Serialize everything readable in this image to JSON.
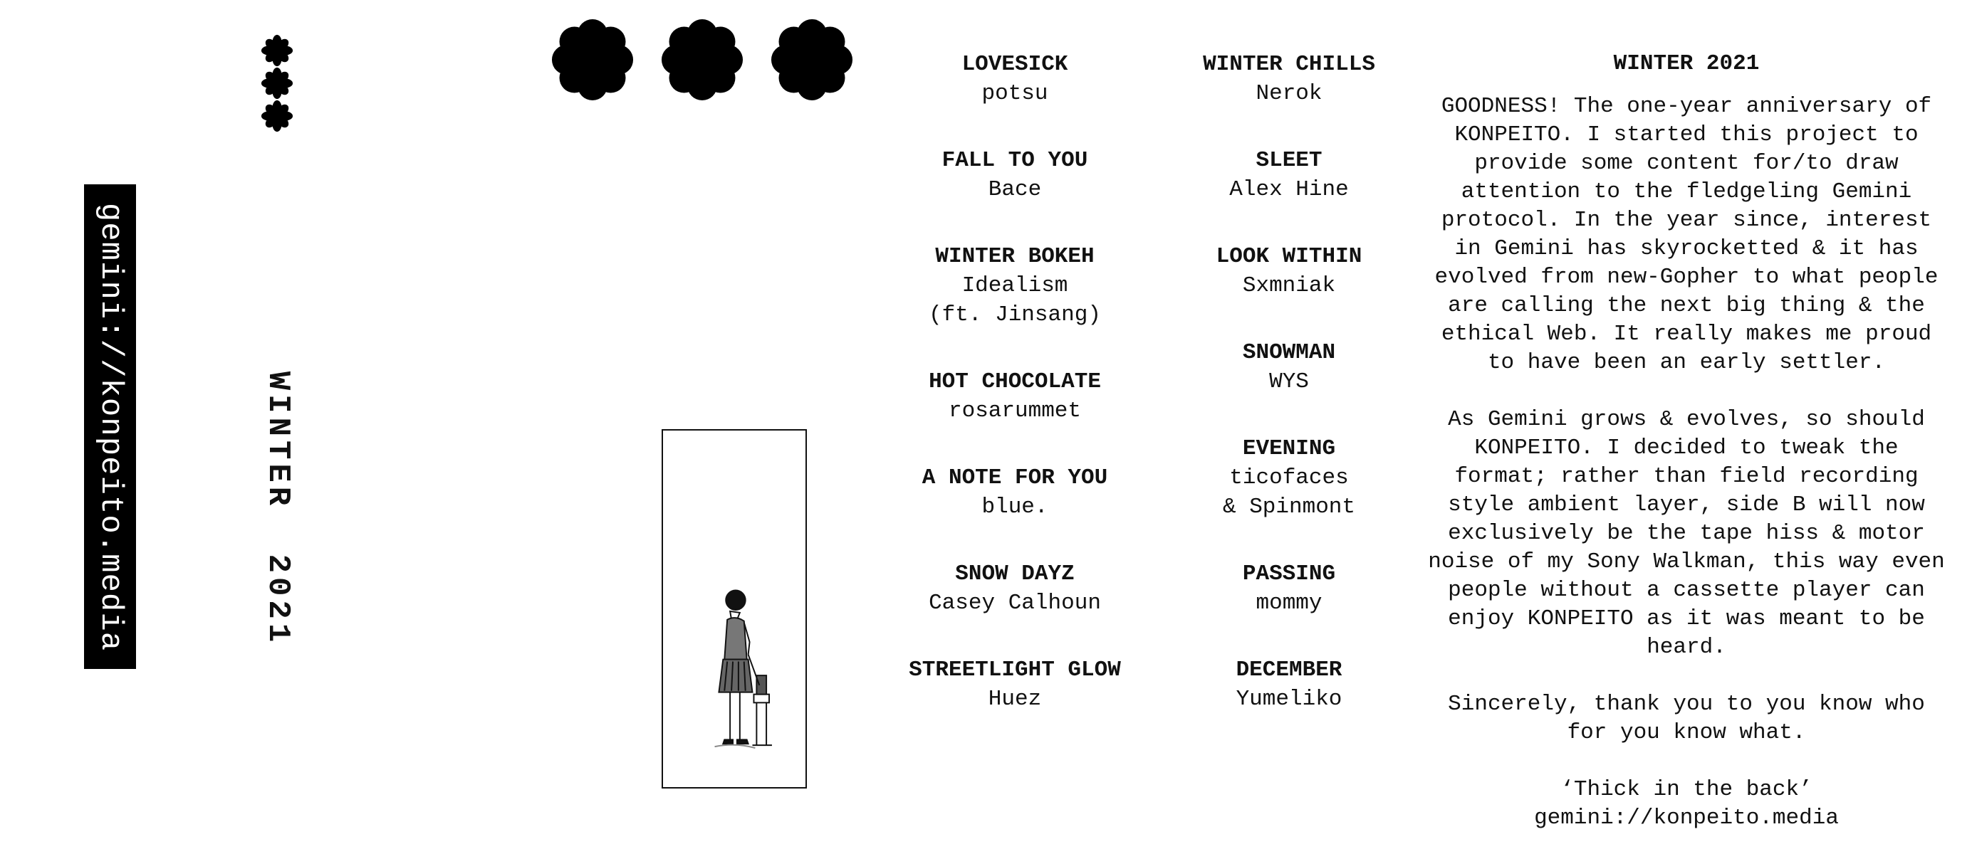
{
  "spine": {
    "url": "gemini://konpeito.media",
    "title_word": "WINTER",
    "title_year": "2021"
  },
  "colors": {
    "ink": "#111111",
    "background": "#ffffff",
    "strip": "#000000"
  },
  "icons": {
    "small": "flower-icon",
    "big": "flower-icon"
  },
  "tracks_side_a": [
    {
      "title": "LOVESICK",
      "artist": "potsu"
    },
    {
      "title": "FALL TO YOU",
      "artist": "Bace"
    },
    {
      "title": "WINTER BOKEH",
      "artist": "Idealism\n(ft. Jinsang)"
    },
    {
      "title": "HOT CHOCOLATE",
      "artist": "rosarummet"
    },
    {
      "title": "A NOTE FOR YOU",
      "artist": "blue."
    },
    {
      "title": "SNOW DAYZ",
      "artist": "Casey Calhoun"
    },
    {
      "title": "STREETLIGHT GLOW",
      "artist": "Huez"
    }
  ],
  "tracks_side_b": [
    {
      "title": "WINTER CHILLS",
      "artist": "Nerok"
    },
    {
      "title": "SLEET",
      "artist": "Alex Hine"
    },
    {
      "title": "LOOK WITHIN",
      "artist": "Sxmniak"
    },
    {
      "title": "SNOWMAN",
      "artist": "WYS"
    },
    {
      "title": "EVENING",
      "artist": "ticofaces\n& Spinmont"
    },
    {
      "title": "PASSING",
      "artist": "mommy"
    },
    {
      "title": "DECEMBER",
      "artist": "Yumeliko"
    }
  ],
  "notes": {
    "heading": "WINTER 2021",
    "paragraph1": "GOODNESS! The one-year anniversary of KONPEITO. I started this project to provide some content for/to draw attention to the fledgeling Gemini protocol. In the year since, interest in Gemini has skyrocketted & it has evolved from new-Gopher to what people are calling the next big thing & the ethical Web. It really makes me proud to have been an early settler.",
    "paragraph2": "As Gemini grows & evolves, so should KONPEITO. I decided to tweak the format; rather than field recording style ambient layer, side B will now exclusively be the tape hiss & motor noise of my Sony Walkman, this way even people without a cassette player can enjoy KONPEITO as it was meant to be heard.",
    "paragraph3": "Sincerely, thank you to you know who for you know what.",
    "signoff": "‘Thick in the back’",
    "url": "gemini://konpeito.media"
  }
}
